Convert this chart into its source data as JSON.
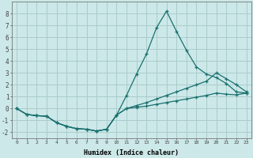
{
  "xlabel": "Humidex (Indice chaleur)",
  "background_color": "#cce8e8",
  "grid_color": "#aacccc",
  "line_color": "#1a7070",
  "x_values": [
    0,
    1,
    2,
    3,
    4,
    5,
    6,
    7,
    8,
    9,
    10,
    11,
    12,
    13,
    14,
    15,
    16,
    17,
    18,
    19,
    20,
    21,
    22,
    23
  ],
  "line1_y": [
    0.0,
    -0.5,
    -0.6,
    -0.65,
    -1.2,
    -1.5,
    -1.7,
    -1.75,
    -1.9,
    -1.75,
    -0.55,
    1.1,
    2.9,
    4.6,
    6.8,
    8.2,
    6.5,
    4.9,
    3.5,
    2.9,
    2.6,
    2.1,
    1.4,
    1.3
  ],
  "line2_y": [
    0.0,
    -0.5,
    -0.6,
    -0.65,
    -1.2,
    -1.5,
    -1.7,
    -1.75,
    -1.9,
    -1.75,
    -0.55,
    0.0,
    0.25,
    0.5,
    0.8,
    1.1,
    1.4,
    1.7,
    2.0,
    2.3,
    3.0,
    2.5,
    2.0,
    1.4
  ],
  "line3_y": [
    0.0,
    -0.5,
    -0.6,
    -0.65,
    -1.2,
    -1.5,
    -1.7,
    -1.75,
    -1.9,
    -1.75,
    -0.55,
    0.0,
    0.1,
    0.2,
    0.35,
    0.5,
    0.65,
    0.8,
    0.95,
    1.1,
    1.3,
    1.2,
    1.15,
    1.3
  ],
  "ylim": [
    -2.5,
    9.0
  ],
  "xlim": [
    -0.5,
    23.5
  ],
  "yticks": [
    -2,
    -1,
    0,
    1,
    2,
    3,
    4,
    5,
    6,
    7,
    8
  ],
  "xticks": [
    0,
    1,
    2,
    3,
    4,
    5,
    6,
    7,
    8,
    9,
    10,
    11,
    12,
    13,
    14,
    15,
    16,
    17,
    18,
    19,
    20,
    21,
    22,
    23
  ]
}
